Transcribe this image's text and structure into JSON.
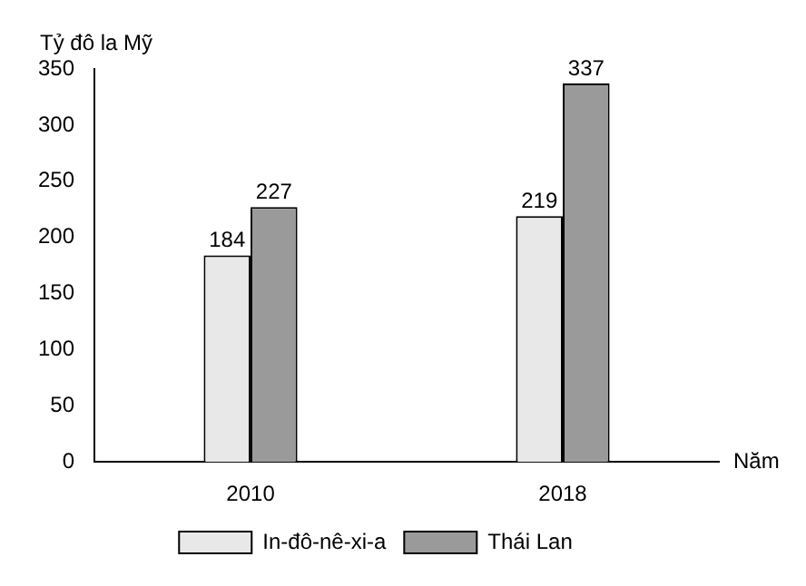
{
  "chart_data": {
    "type": "bar",
    "ylabel": "Tỷ đô la Mỹ",
    "xlabel": "Năm",
    "categories": [
      "2010",
      "2018"
    ],
    "series": [
      {
        "name": "In-đô-nê-xi-a",
        "color": "#e8e8e8",
        "values": [
          184,
          219
        ]
      },
      {
        "name": "Thái Lan",
        "color": "#9a9a9a",
        "values": [
          227,
          337
        ]
      }
    ],
    "ylim": [
      0,
      350
    ],
    "yticks": [
      0,
      50,
      100,
      150,
      200,
      250,
      300,
      350
    ],
    "grid": false,
    "legend": "bottom",
    "data_labels": true
  }
}
